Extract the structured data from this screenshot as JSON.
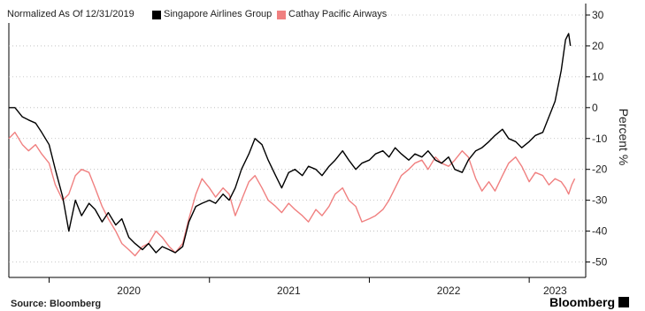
{
  "chart_data": {
    "type": "line",
    "legend": {
      "note": "Normalized As Of 12/31/2019",
      "placement": "top-left"
    },
    "ylabel": "Percent %",
    "ylim": [
      -55,
      32
    ],
    "yticks": [
      30,
      20,
      10,
      0,
      -10,
      -20,
      -30,
      -40,
      -50
    ],
    "xlim": [
      "2019-10-01",
      "2023-05-10"
    ],
    "xticks": [
      {
        "label": "2020",
        "date": "2020-07-01"
      },
      {
        "label": "2021",
        "date": "2021-07-01"
      },
      {
        "label": "2022",
        "date": "2022-07-01"
      },
      {
        "label": "2023",
        "date": "2023-03-01"
      }
    ],
    "grid": "horizontal-dotted",
    "series": [
      {
        "name": "Singapore Airlines Group",
        "color": "#000000",
        "points": [
          [
            "2019-10-01",
            0
          ],
          [
            "2019-10-15",
            0
          ],
          [
            "2019-11-01",
            -3
          ],
          [
            "2019-11-15",
            -4
          ],
          [
            "2019-12-01",
            -5
          ],
          [
            "2019-12-15",
            -8
          ],
          [
            "2020-01-01",
            -12
          ],
          [
            "2020-01-15",
            -20
          ],
          [
            "2020-02-01",
            -29
          ],
          [
            "2020-02-15",
            -40
          ],
          [
            "2020-03-01",
            -30
          ],
          [
            "2020-03-15",
            -35
          ],
          [
            "2020-04-01",
            -31
          ],
          [
            "2020-04-15",
            -33
          ],
          [
            "2020-05-01",
            -37
          ],
          [
            "2020-05-15",
            -34
          ],
          [
            "2020-06-01",
            -38
          ],
          [
            "2020-06-15",
            -36
          ],
          [
            "2020-07-01",
            -42
          ],
          [
            "2020-07-15",
            -44
          ],
          [
            "2020-08-01",
            -46
          ],
          [
            "2020-08-15",
            -44
          ],
          [
            "2020-09-01",
            -47
          ],
          [
            "2020-09-15",
            -45
          ],
          [
            "2020-10-01",
            -46
          ],
          [
            "2020-10-15",
            -47
          ],
          [
            "2020-11-01",
            -45
          ],
          [
            "2020-11-15",
            -37
          ],
          [
            "2020-12-01",
            -32
          ],
          [
            "2020-12-15",
            -31
          ],
          [
            "2021-01-01",
            -30
          ],
          [
            "2021-01-15",
            -31
          ],
          [
            "2021-02-01",
            -28
          ],
          [
            "2021-02-15",
            -30
          ],
          [
            "2021-03-01",
            -26
          ],
          [
            "2021-03-15",
            -20
          ],
          [
            "2021-04-01",
            -15
          ],
          [
            "2021-04-15",
            -10
          ],
          [
            "2021-05-01",
            -12
          ],
          [
            "2021-05-15",
            -17
          ],
          [
            "2021-06-01",
            -22
          ],
          [
            "2021-06-15",
            -26
          ],
          [
            "2021-07-01",
            -21
          ],
          [
            "2021-07-15",
            -20
          ],
          [
            "2021-08-01",
            -22
          ],
          [
            "2021-08-15",
            -19
          ],
          [
            "2021-09-01",
            -20
          ],
          [
            "2021-09-15",
            -22
          ],
          [
            "2021-10-01",
            -19
          ],
          [
            "2021-10-15",
            -17
          ],
          [
            "2021-11-01",
            -14
          ],
          [
            "2021-11-15",
            -17
          ],
          [
            "2021-12-01",
            -20
          ],
          [
            "2021-12-15",
            -18
          ],
          [
            "2022-01-01",
            -17
          ],
          [
            "2022-01-15",
            -15
          ],
          [
            "2022-02-01",
            -14
          ],
          [
            "2022-02-15",
            -16
          ],
          [
            "2022-03-01",
            -13
          ],
          [
            "2022-03-15",
            -15
          ],
          [
            "2022-04-01",
            -17
          ],
          [
            "2022-04-15",
            -15
          ],
          [
            "2022-05-01",
            -16
          ],
          [
            "2022-05-15",
            -14
          ],
          [
            "2022-06-01",
            -17
          ],
          [
            "2022-06-15",
            -18
          ],
          [
            "2022-07-01",
            -16
          ],
          [
            "2022-07-15",
            -20
          ],
          [
            "2022-08-01",
            -21
          ],
          [
            "2022-08-15",
            -17
          ],
          [
            "2022-09-01",
            -14
          ],
          [
            "2022-09-15",
            -13
          ],
          [
            "2022-10-01",
            -11
          ],
          [
            "2022-10-15",
            -9
          ],
          [
            "2022-11-01",
            -7
          ],
          [
            "2022-11-15",
            -10
          ],
          [
            "2022-12-01",
            -11
          ],
          [
            "2022-12-15",
            -13
          ],
          [
            "2023-01-01",
            -11
          ],
          [
            "2023-01-15",
            -9
          ],
          [
            "2023-02-01",
            -8
          ],
          [
            "2023-02-15",
            -3
          ],
          [
            "2023-03-01",
            2
          ],
          [
            "2023-03-15",
            12
          ],
          [
            "2023-03-25",
            22
          ],
          [
            "2023-04-01",
            24
          ],
          [
            "2023-04-05",
            20
          ]
        ]
      },
      {
        "name": "Cathay Pacific Airways",
        "color": "#f08080",
        "points": [
          [
            "2019-10-01",
            -10
          ],
          [
            "2019-10-15",
            -8
          ],
          [
            "2019-11-01",
            -12
          ],
          [
            "2019-11-15",
            -14
          ],
          [
            "2019-12-01",
            -12
          ],
          [
            "2019-12-15",
            -15
          ],
          [
            "2020-01-01",
            -18
          ],
          [
            "2020-01-15",
            -25
          ],
          [
            "2020-02-01",
            -30
          ],
          [
            "2020-02-15",
            -28
          ],
          [
            "2020-03-01",
            -22
          ],
          [
            "2020-03-15",
            -20
          ],
          [
            "2020-04-01",
            -21
          ],
          [
            "2020-04-15",
            -26
          ],
          [
            "2020-05-01",
            -32
          ],
          [
            "2020-05-15",
            -36
          ],
          [
            "2020-06-01",
            -40
          ],
          [
            "2020-06-15",
            -44
          ],
          [
            "2020-07-01",
            -46
          ],
          [
            "2020-07-15",
            -48
          ],
          [
            "2020-08-01",
            -45
          ],
          [
            "2020-08-15",
            -44
          ],
          [
            "2020-09-01",
            -40
          ],
          [
            "2020-09-15",
            -42
          ],
          [
            "2020-10-01",
            -45
          ],
          [
            "2020-10-15",
            -47
          ],
          [
            "2020-11-01",
            -44
          ],
          [
            "2020-11-15",
            -36
          ],
          [
            "2020-12-01",
            -28
          ],
          [
            "2020-12-15",
            -23
          ],
          [
            "2021-01-01",
            -26
          ],
          [
            "2021-01-15",
            -29
          ],
          [
            "2021-02-01",
            -26
          ],
          [
            "2021-02-15",
            -28
          ],
          [
            "2021-03-01",
            -35
          ],
          [
            "2021-03-15",
            -30
          ],
          [
            "2021-04-01",
            -24
          ],
          [
            "2021-04-15",
            -22
          ],
          [
            "2021-05-01",
            -26
          ],
          [
            "2021-05-15",
            -30
          ],
          [
            "2021-06-01",
            -32
          ],
          [
            "2021-06-15",
            -34
          ],
          [
            "2021-07-01",
            -31
          ],
          [
            "2021-07-15",
            -33
          ],
          [
            "2021-08-01",
            -35
          ],
          [
            "2021-08-15",
            -37
          ],
          [
            "2021-09-01",
            -33
          ],
          [
            "2021-09-15",
            -35
          ],
          [
            "2021-10-01",
            -32
          ],
          [
            "2021-10-15",
            -28
          ],
          [
            "2021-11-01",
            -26
          ],
          [
            "2021-11-15",
            -30
          ],
          [
            "2021-12-01",
            -32
          ],
          [
            "2021-12-15",
            -37
          ],
          [
            "2022-01-01",
            -36
          ],
          [
            "2022-01-15",
            -35
          ],
          [
            "2022-02-01",
            -33
          ],
          [
            "2022-02-15",
            -30
          ],
          [
            "2022-03-01",
            -26
          ],
          [
            "2022-03-15",
            -22
          ],
          [
            "2022-04-01",
            -20
          ],
          [
            "2022-04-15",
            -18
          ],
          [
            "2022-05-01",
            -17
          ],
          [
            "2022-05-15",
            -20
          ],
          [
            "2022-06-01",
            -16
          ],
          [
            "2022-06-15",
            -18
          ],
          [
            "2022-07-01",
            -19
          ],
          [
            "2022-07-15",
            -17
          ],
          [
            "2022-08-01",
            -14
          ],
          [
            "2022-08-15",
            -16
          ],
          [
            "2022-09-01",
            -23
          ],
          [
            "2022-09-15",
            -27
          ],
          [
            "2022-10-01",
            -24
          ],
          [
            "2022-10-15",
            -27
          ],
          [
            "2022-11-01",
            -22
          ],
          [
            "2022-11-15",
            -18
          ],
          [
            "2022-12-01",
            -16
          ],
          [
            "2022-12-15",
            -19
          ],
          [
            "2023-01-01",
            -24
          ],
          [
            "2023-01-15",
            -21
          ],
          [
            "2023-02-01",
            -22
          ],
          [
            "2023-02-15",
            -25
          ],
          [
            "2023-03-01",
            -23
          ],
          [
            "2023-03-15",
            -24
          ],
          [
            "2023-03-25",
            -26
          ],
          [
            "2023-04-01",
            -28
          ],
          [
            "2023-04-08",
            -25
          ],
          [
            "2023-04-15",
            -23
          ]
        ]
      }
    ]
  },
  "footer": {
    "source": "Source: Bloomberg",
    "brand": "Bloomberg"
  }
}
